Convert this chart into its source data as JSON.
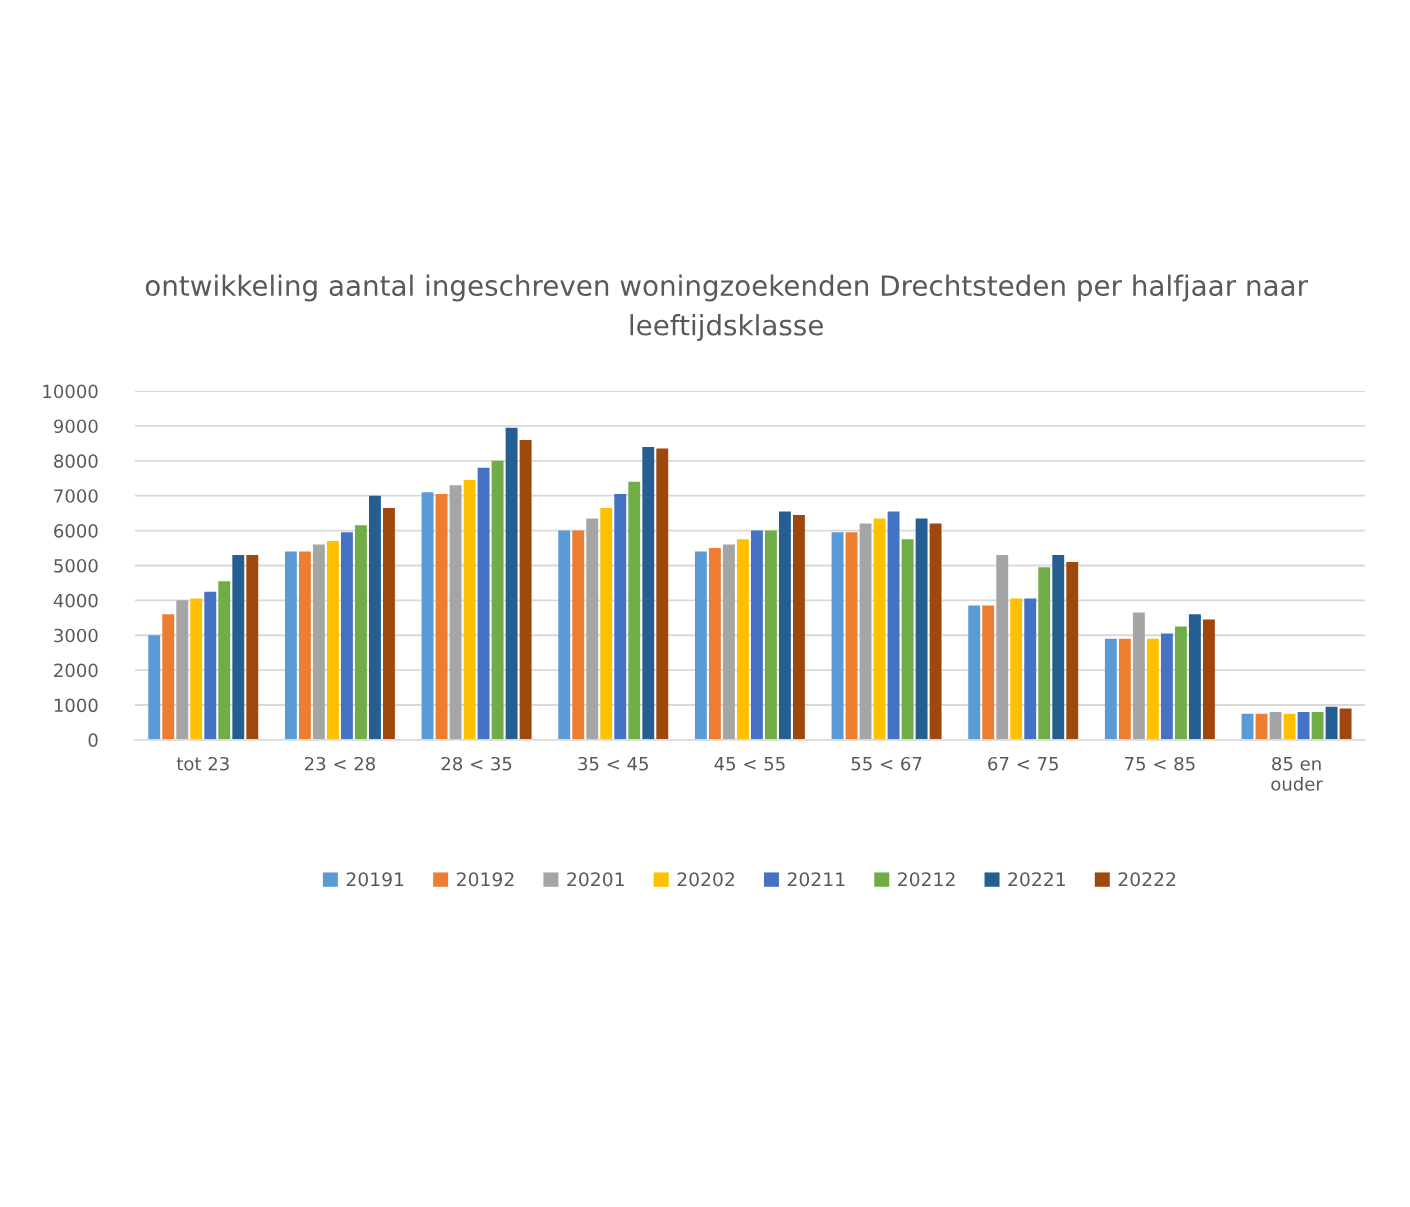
{
  "chart_data": {
    "type": "bar",
    "title": "ontwikkeling aantal ingeschreven woningzoekenden Drechtsteden per halfjaar naar leeftijdsklasse",
    "categories": [
      "tot 23",
      "23 < 28",
      "28 < 35",
      "35 < 45",
      "45 < 55",
      "55 < 67",
      "67 < 75",
      "75 < 85",
      "85 en ouder"
    ],
    "series": [
      {
        "name": "20191",
        "color": "#5b9bd5",
        "values": [
          3000,
          5400,
          7100,
          6000,
          5400,
          5950,
          3850,
          2900,
          750
        ]
      },
      {
        "name": "20192",
        "color": "#ed7d31",
        "values": [
          3600,
          5400,
          7050,
          6000,
          5500,
          5950,
          3850,
          2900,
          750
        ]
      },
      {
        "name": "20201",
        "color": "#a5a5a5",
        "values": [
          4000,
          5600,
          7300,
          6350,
          5600,
          6200,
          5300,
          3650,
          800
        ]
      },
      {
        "name": "20202",
        "color": "#ffc000",
        "values": [
          4050,
          5700,
          7450,
          6650,
          5750,
          6350,
          4050,
          2900,
          750
        ]
      },
      {
        "name": "20211",
        "color": "#4472c4",
        "values": [
          4250,
          5950,
          7800,
          7050,
          6000,
          6550,
          4050,
          3050,
          800
        ]
      },
      {
        "name": "20212",
        "color": "#70ad47",
        "values": [
          4550,
          6150,
          8000,
          7400,
          6000,
          5750,
          4950,
          3250,
          800
        ]
      },
      {
        "name": "20221",
        "color": "#255e91",
        "values": [
          5300,
          7000,
          8950,
          8400,
          6550,
          6350,
          5300,
          3600,
          950
        ]
      },
      {
        "name": "20222",
        "color": "#9e480e",
        "values": [
          5300,
          6650,
          8600,
          8350,
          6450,
          6200,
          5100,
          3450,
          900
        ]
      }
    ],
    "ylim": [
      0,
      10000
    ],
    "yticks": [
      0,
      1000,
      2000,
      3000,
      4000,
      5000,
      6000,
      7000,
      8000,
      9000,
      10000
    ],
    "grid": "y",
    "legend": "bottom"
  }
}
